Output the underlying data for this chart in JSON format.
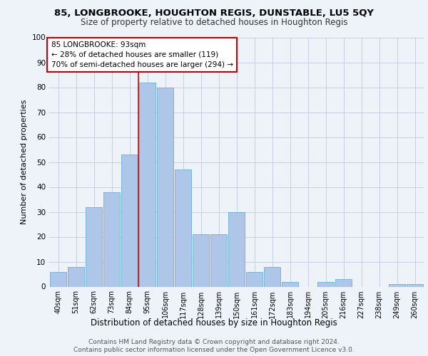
{
  "title1": "85, LONGBROOKE, HOUGHTON REGIS, DUNSTABLE, LU5 5QY",
  "title2": "Size of property relative to detached houses in Houghton Regis",
  "xlabel": "Distribution of detached houses by size in Houghton Regis",
  "ylabel": "Number of detached properties",
  "categories": [
    "40sqm",
    "51sqm",
    "62sqm",
    "73sqm",
    "84sqm",
    "95sqm",
    "106sqm",
    "117sqm",
    "128sqm",
    "139sqm",
    "150sqm",
    "161sqm",
    "172sqm",
    "183sqm",
    "194sqm",
    "205sqm",
    "216sqm",
    "227sqm",
    "238sqm",
    "249sqm",
    "260sqm"
  ],
  "values": [
    6,
    8,
    32,
    38,
    53,
    82,
    80,
    47,
    21,
    21,
    30,
    6,
    8,
    2,
    0,
    2,
    3,
    0,
    0,
    1,
    1
  ],
  "bar_color": "#aec6e8",
  "bar_edge_color": "#6baed6",
  "ref_line_index": 4.5,
  "annotation_text": "85 LONGBROOKE: 93sqm\n← 28% of detached houses are smaller (119)\n70% of semi-detached houses are larger (294) →",
  "footnote1": "Contains HM Land Registry data © Crown copyright and database right 2024.",
  "footnote2": "Contains public sector information licensed under the Open Government Licence v3.0.",
  "background_color": "#eef2f9",
  "plot_bg_color": "#eef2f9",
  "grid_color": "#c8d0e0",
  "ylim": [
    0,
    100
  ],
  "annotation_box_color": "#ffffff",
  "annotation_box_edge": "#cc0000",
  "ref_line_color": "#cc0000",
  "title1_fontsize": 9.5,
  "title2_fontsize": 8.5,
  "ylabel_fontsize": 8,
  "xlabel_fontsize": 8.5,
  "tick_fontsize": 7,
  "annot_fontsize": 7.5,
  "footnote_fontsize": 6.5
}
